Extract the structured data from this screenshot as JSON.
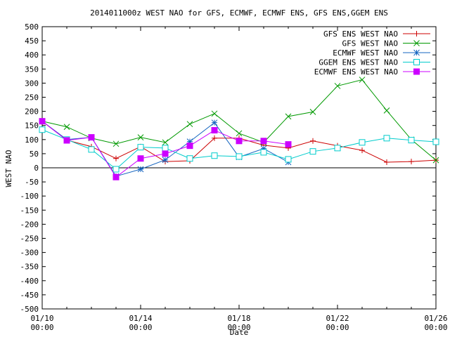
{
  "chart_data": {
    "type": "line",
    "title": "2014011000z WEST NAO for GFS, ECMWF, ECMWF ENS, GFS ENS,GGEM ENS",
    "xlabel": "Date",
    "ylabel": "WEST NAO",
    "xlim": [
      0,
      16
    ],
    "ylim": [
      -500,
      500
    ],
    "grid": false,
    "legend_position": "top-right",
    "x_ticks": [
      {
        "x": 0,
        "line1": "01/10",
        "line2": "00:00"
      },
      {
        "x": 4,
        "line1": "01/14",
        "line2": "00:00"
      },
      {
        "x": 8,
        "line1": "01/18",
        "line2": "00:00"
      },
      {
        "x": 12,
        "line1": "01/22",
        "line2": "00:00"
      },
      {
        "x": 16,
        "line1": "01/26",
        "line2": "00:00"
      }
    ],
    "y_ticks": [
      500,
      450,
      400,
      350,
      300,
      250,
      200,
      150,
      100,
      50,
      0,
      -50,
      -100,
      -150,
      -200,
      -250,
      -300,
      -350,
      -400,
      -450,
      -500
    ],
    "x": [
      0,
      1,
      2,
      3,
      4,
      5,
      6,
      7,
      8,
      9,
      10,
      11,
      12,
      13,
      14,
      15,
      16
    ],
    "series": [
      {
        "name": "GFS ENS WEST NAO",
        "color": "#cc0000",
        "marker": "plus",
        "values": [
          165,
          98,
          75,
          33,
          75,
          22,
          25,
          105,
          105,
          80,
          70,
          95,
          78,
          62,
          20,
          22,
          27
        ]
      },
      {
        "name": "GFS WEST NAO",
        "color": "#009900",
        "marker": "x",
        "values": [
          165,
          145,
          105,
          85,
          108,
          90,
          155,
          192,
          122,
          90,
          182,
          198,
          290,
          312,
          203,
          100,
          27
        ]
      },
      {
        "name": "ECMWF WEST NAO",
        "color": "#1565c0",
        "marker": "star",
        "values": [
          165,
          100,
          108,
          -30,
          -5,
          28,
          93,
          160,
          38,
          68,
          20,
          null,
          null,
          null,
          null,
          null,
          null
        ]
      },
      {
        "name": "GGEM ENS WEST NAO",
        "color": "#00cccc",
        "marker": "square-open",
        "values": [
          135,
          100,
          65,
          -5,
          73,
          70,
          33,
          43,
          40,
          55,
          30,
          58,
          70,
          90,
          105,
          98,
          92
        ]
      },
      {
        "name": "ECMWF ENS WEST NAO",
        "color": "#cc00ff",
        "marker": "square-filled",
        "values": [
          165,
          97,
          108,
          -33,
          33,
          50,
          78,
          133,
          95,
          95,
          83,
          null,
          null,
          null,
          null,
          null,
          null
        ]
      }
    ]
  }
}
